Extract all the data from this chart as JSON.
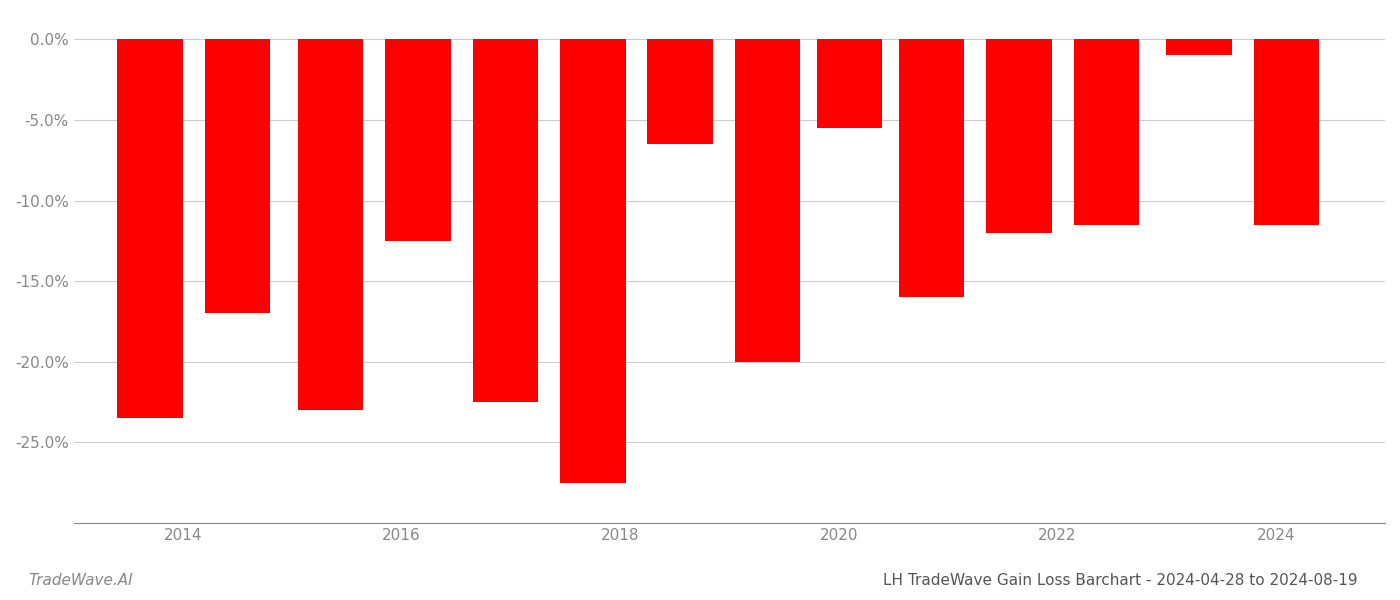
{
  "x_positions": [
    2013.7,
    2014.5,
    2015.35,
    2016.15,
    2016.95,
    2017.75,
    2018.55,
    2019.35,
    2020.1,
    2020.85,
    2021.65,
    2022.45,
    2023.3,
    2024.1
  ],
  "values": [
    -23.5,
    -17.0,
    -23.0,
    -12.5,
    -22.5,
    -27.5,
    -6.5,
    -20.0,
    -5.5,
    -16.0,
    -12.0,
    -11.5,
    -1.0,
    -11.5
  ],
  "bar_width": 0.6,
  "bar_color": "#ff0000",
  "background_color": "#ffffff",
  "title": "LH TradeWave Gain Loss Barchart - 2024-04-28 to 2024-08-19",
  "watermark": "TradeWave.AI",
  "ylim_min": -30,
  "ylim_max": 1.5,
  "xlim_min": 2013.0,
  "xlim_max": 2025.0,
  "grid_color": "#cccccc",
  "tick_color": "#888888",
  "title_fontsize": 11,
  "watermark_fontsize": 11,
  "axis_fontsize": 11,
  "xticks": [
    2014,
    2016,
    2018,
    2020,
    2022,
    2024
  ],
  "xtick_labels": [
    "2014",
    "2016",
    "2018",
    "2020",
    "2022",
    "2024"
  ],
  "yticks": [
    0.0,
    -5.0,
    -10.0,
    -15.0,
    -20.0,
    -25.0
  ]
}
